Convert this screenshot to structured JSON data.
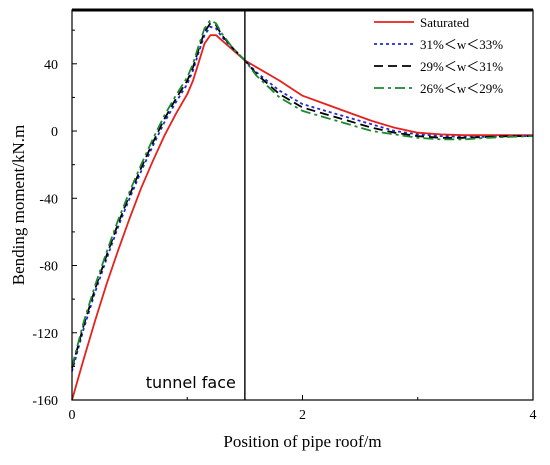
{
  "chart_data": {
    "type": "line",
    "xlabel": "Position of pipe roof/m",
    "ylabel": "Bending moment/kN.m",
    "xlim": [
      0,
      4
    ],
    "ylim": [
      -160,
      72
    ],
    "xticks": [
      0,
      2,
      4
    ],
    "yticks": [
      -160,
      -120,
      -80,
      -40,
      0,
      40
    ],
    "grid": false,
    "legend_position": "top-right",
    "annotations": [
      {
        "text": "tunnel face",
        "x": 1.5
      }
    ],
    "series": [
      {
        "name": "Saturated",
        "color": "#e8201c",
        "dash": "solid",
        "x": [
          0,
          0.1,
          0.2,
          0.3,
          0.4,
          0.5,
          0.6,
          0.7,
          0.8,
          0.9,
          1.0,
          1.05,
          1.1,
          1.15,
          1.2,
          1.25,
          1.3,
          1.4,
          1.5,
          1.6,
          1.8,
          2.0,
          2.2,
          2.4,
          2.6,
          2.8,
          3.0,
          3.2,
          3.4,
          3.6,
          3.8,
          4.0
        ],
        "y": [
          -160,
          -136,
          -113,
          -91,
          -71,
          -52,
          -34,
          -18,
          -3,
          10,
          22,
          30,
          41,
          52,
          57,
          57,
          54,
          48,
          42,
          38,
          30,
          21,
          16,
          11,
          6,
          2,
          -1,
          -2,
          -2.5,
          -2.5,
          -2.5,
          -2.5
        ]
      },
      {
        "name": "31%＜w＜33%",
        "color": "#1e2bd9",
        "dash": "dot",
        "x": [
          0,
          0.1,
          0.2,
          0.3,
          0.4,
          0.5,
          0.6,
          0.7,
          0.8,
          0.9,
          1.0,
          1.05,
          1.1,
          1.15,
          1.2,
          1.25,
          1.3,
          1.4,
          1.5,
          1.6,
          1.8,
          2.0,
          2.2,
          2.4,
          2.6,
          2.8,
          3.0,
          3.2,
          3.4,
          3.6,
          3.8,
          4.0
        ],
        "y": [
          -143,
          -118,
          -96,
          -76,
          -57,
          -40,
          -24,
          -9,
          5,
          17,
          28,
          36,
          47,
          57,
          62,
          61,
          56,
          49,
          42,
          35,
          24,
          16,
          12,
          8,
          4,
          0,
          -2,
          -3,
          -3.5,
          -3.5,
          -3,
          -3
        ]
      },
      {
        "name": "29%＜w＜31%",
        "color": "#000000",
        "dash": "dash",
        "x": [
          0,
          0.1,
          0.2,
          0.3,
          0.4,
          0.5,
          0.6,
          0.7,
          0.8,
          0.9,
          1.0,
          1.05,
          1.1,
          1.15,
          1.2,
          1.25,
          1.3,
          1.4,
          1.5,
          1.6,
          1.8,
          2.0,
          2.2,
          2.4,
          2.6,
          2.8,
          3.0,
          3.2,
          3.4,
          3.6,
          3.8,
          4.0
        ],
        "y": [
          -141,
          -116,
          -94,
          -74,
          -55,
          -38,
          -22,
          -7,
          7,
          19,
          30,
          38,
          49,
          59,
          64,
          63,
          57,
          49,
          42,
          34,
          22,
          14,
          10,
          6,
          2,
          -1,
          -3,
          -4,
          -4,
          -3.5,
          -3,
          -3
        ]
      },
      {
        "name": "26%＜w＜29%",
        "color": "#1a8a2e",
        "dash": "dashdot",
        "x": [
          0,
          0.1,
          0.2,
          0.3,
          0.4,
          0.5,
          0.6,
          0.7,
          0.8,
          0.9,
          1.0,
          1.05,
          1.1,
          1.15,
          1.2,
          1.25,
          1.3,
          1.4,
          1.5,
          1.6,
          1.8,
          2.0,
          2.2,
          2.4,
          2.6,
          2.8,
          3.0,
          3.2,
          3.4,
          3.6,
          3.8,
          4.0
        ],
        "y": [
          -140,
          -114,
          -92,
          -72,
          -53,
          -36,
          -20,
          -5,
          9,
          21,
          32,
          40,
          51,
          61,
          66,
          64,
          58,
          49,
          42,
          33,
          20,
          12,
          8,
          4,
          0,
          -2,
          -4,
          -5,
          -5,
          -4,
          -3.5,
          -3
        ]
      }
    ]
  }
}
